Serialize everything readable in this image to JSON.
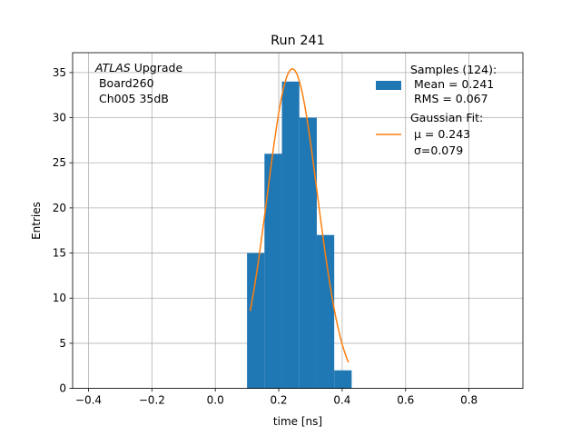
{
  "chart_data": {
    "type": "bar",
    "title": "Run 241",
    "xlabel": "time [ns]",
    "ylabel": "Entries",
    "xlim": [
      -0.45,
      0.97
    ],
    "ylim": [
      0,
      37.2
    ],
    "xticks": [
      -0.4,
      -0.2,
      0.0,
      0.2,
      0.4,
      0.6,
      0.8
    ],
    "xtick_labels": [
      "−0.4",
      "−0.2",
      "0.0",
      "0.2",
      "0.4",
      "0.6",
      "0.8"
    ],
    "yticks": [
      0,
      5,
      10,
      15,
      20,
      25,
      30,
      35
    ],
    "ytick_labels": [
      "0",
      "5",
      "10",
      "15",
      "20",
      "25",
      "30",
      "35"
    ],
    "grid": true,
    "histogram": {
      "name": "Samples",
      "color": "#1f77b4",
      "bin_edges": [
        0.1,
        0.155,
        0.21,
        0.265,
        0.32,
        0.375,
        0.43
      ],
      "counts": [
        15,
        26,
        34,
        30,
        17,
        2
      ]
    },
    "fit": {
      "name": "Gaussian Fit",
      "color": "#ff7f0e",
      "amplitude": 35.4,
      "mu": 0.243,
      "sigma": 0.079,
      "x_range": [
        0.11,
        0.42
      ]
    },
    "annotation": {
      "line1_italic": "ATLAS",
      "line1_rest": " Upgrade",
      "line2": " Board260",
      "line3": " Ch005 35dB"
    },
    "legend": {
      "position": "upper-right",
      "hist_lines": [
        "Samples (124):",
        " Mean = 0.241",
        " RMS = 0.067"
      ],
      "fit_lines": [
        "Gaussian Fit:",
        " μ = 0.243",
        " σ=0.079"
      ]
    }
  }
}
